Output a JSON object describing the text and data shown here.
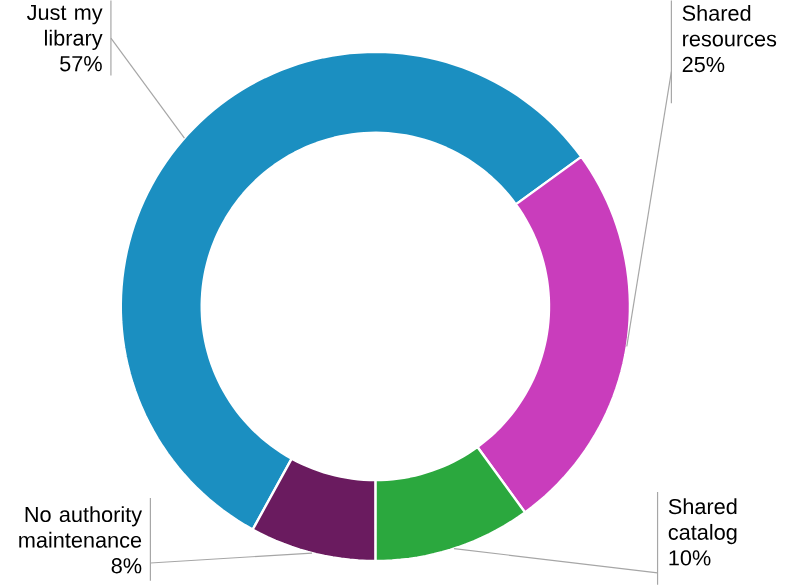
{
  "chart_data": {
    "type": "donut",
    "categories": [
      "Just my library",
      "Shared resources",
      "Shared catalog",
      "No authority maintenance"
    ],
    "values": [
      57,
      25,
      10,
      8
    ],
    "colors": [
      "#1b8fc1",
      "#c93dbc",
      "#2ba83e",
      "#6a1b5f"
    ],
    "value_labels": [
      "57%",
      "25%",
      "10%",
      "8%"
    ]
  }
}
